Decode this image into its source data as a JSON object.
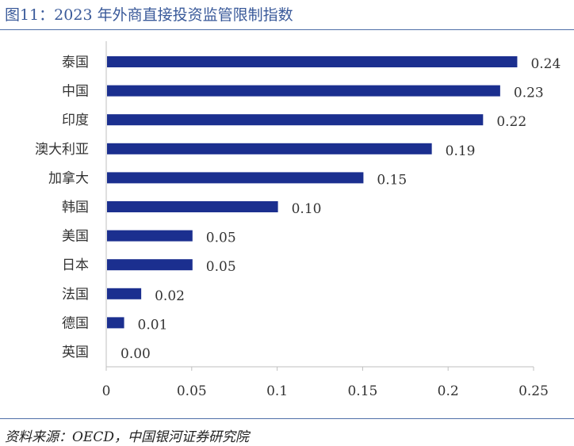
{
  "header": {
    "title": "图11：2023 年外商直接投资监管限制指数"
  },
  "footer": {
    "source": "资料来源：OECD，中国银河证券研究院"
  },
  "chart_data": {
    "type": "bar",
    "orientation": "horizontal",
    "title": "图11：2023 年外商直接投资监管限制指数",
    "categories": [
      "泰国",
      "中国",
      "印度",
      "澳大利亚",
      "加拿大",
      "韩国",
      "美国",
      "日本",
      "法国",
      "德国",
      "英国"
    ],
    "values": [
      0.24,
      0.23,
      0.22,
      0.19,
      0.15,
      0.1,
      0.05,
      0.05,
      0.02,
      0.01,
      0.0
    ],
    "value_labels": [
      "0.24",
      "0.23",
      "0.22",
      "0.19",
      "0.15",
      "0.10",
      "0.05",
      "0.05",
      "0.02",
      "0.01",
      "0.00"
    ],
    "xlim": [
      0,
      0.25
    ],
    "xticks": [
      0,
      0.05,
      0.1,
      0.15,
      0.2,
      0.25
    ],
    "xtick_labels": [
      "0",
      "0.05",
      "0.1",
      "0.15",
      "0.2",
      "0.25"
    ],
    "xlabel": "",
    "ylabel": "",
    "grid": false,
    "legend": "none",
    "bar_color": "#1b2f8f"
  }
}
